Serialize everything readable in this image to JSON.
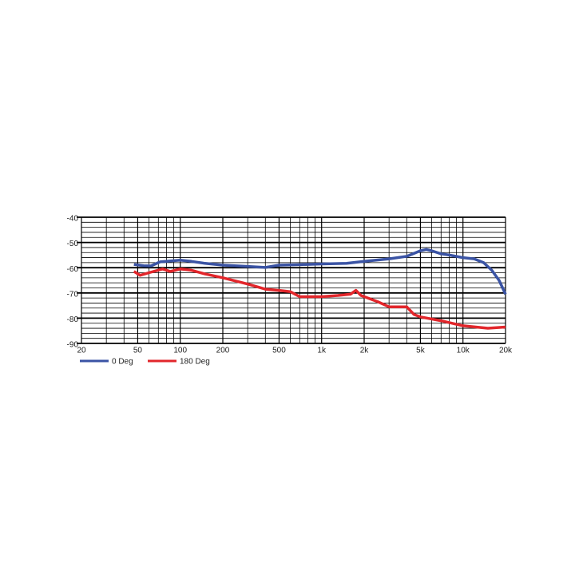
{
  "chart_data": {
    "type": "line",
    "xscale": "log",
    "xlim": [
      20,
      20000
    ],
    "ylim": [
      -90,
      -40
    ],
    "xticks": [
      20,
      50,
      100,
      200,
      500,
      {
        "value": 1000,
        "label": "1k"
      },
      {
        "value": 2000,
        "label": "2k"
      },
      {
        "value": 5000,
        "label": "5k"
      },
      {
        "value": 10000,
        "label": "10k"
      },
      {
        "value": 20000,
        "label": "20k"
      }
    ],
    "x_minor_ticks": [
      30,
      40,
      60,
      70,
      80,
      90,
      300,
      400,
      600,
      700,
      800,
      900,
      3000,
      4000,
      6000,
      7000,
      8000,
      9000
    ],
    "yticks": [
      -90,
      -80,
      -70,
      -60,
      -50,
      -40
    ],
    "y_minor_ticks": [
      -88,
      -86,
      -84,
      -82,
      -78,
      -76,
      -74,
      -72,
      -68,
      -66,
      -64,
      -62,
      -58,
      -56,
      -54,
      -52,
      -48,
      -46,
      -44,
      -42
    ],
    "grid": true,
    "series": [
      {
        "name": "0 Deg",
        "color": "#3a53a4",
        "x": [
          47,
          55,
          62,
          72,
          100,
          120,
          150,
          200,
          300,
          400,
          500,
          700,
          1000,
          1500,
          2000,
          3000,
          4000,
          5000,
          5500,
          6000,
          7000,
          8000,
          10000,
          12000,
          14000,
          16000,
          18000,
          20000
        ],
        "values": [
          -58.7,
          -59.2,
          -59.3,
          -57.7,
          -57,
          -57.5,
          -58.3,
          -59,
          -59.5,
          -59.9,
          -59,
          -58.8,
          -58.5,
          -58.3,
          -57.5,
          -56.5,
          -55.5,
          -53.3,
          -52.8,
          -53.3,
          -54.5,
          -55,
          -56,
          -56.5,
          -58,
          -61,
          -65,
          -70.5
        ]
      },
      {
        "name": "180 Deg",
        "color": "#e2262b",
        "x": [
          47,
          52,
          60,
          75,
          85,
          100,
          120,
          150,
          200,
          300,
          400,
          500,
          600,
          700,
          1000,
          1300,
          1600,
          1750,
          1900,
          2500,
          3000,
          4000,
          4500,
          5000,
          7000,
          10000,
          15000,
          20000
        ],
        "values": [
          -61.5,
          -63,
          -62,
          -60.5,
          -61.5,
          -60.5,
          -61,
          -62.5,
          -64,
          -66.5,
          -68.5,
          -69,
          -69.5,
          -71.5,
          -71.5,
          -71,
          -70.5,
          -69,
          -71,
          -73.5,
          -75.5,
          -75.5,
          -78.5,
          -79.5,
          -81,
          -83,
          -84,
          -83.5
        ]
      }
    ]
  }
}
